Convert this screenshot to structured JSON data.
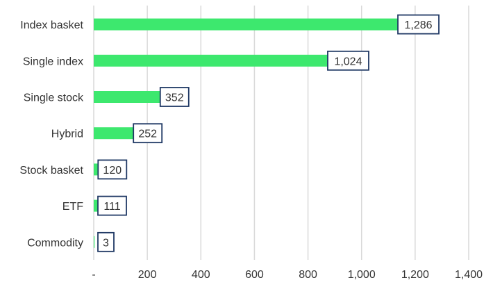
{
  "chart_data": {
    "type": "bar",
    "orientation": "horizontal",
    "categories": [
      "Index basket",
      "Single index",
      "Single stock",
      "Hybrid",
      "Stock basket",
      "ETF",
      "Commodity"
    ],
    "values": [
      1286,
      1024,
      352,
      252,
      120,
      111,
      3
    ],
    "data_labels": [
      "1,286",
      "1,024",
      "352",
      "252",
      "120",
      "111",
      "3"
    ],
    "x_ticks": [
      0,
      200,
      400,
      600,
      800,
      1000,
      1200,
      1400
    ],
    "x_tick_labels": [
      "-",
      "200",
      "400",
      "600",
      "800",
      "1,000",
      "1,200",
      "1,400"
    ],
    "xlim": [
      0,
      1400
    ],
    "grid": "vertical",
    "legend": "none",
    "colors": {
      "bar": "#3de86e",
      "grid": "#d9d9d9",
      "label_border": "#1f3864",
      "text": "#333333"
    }
  }
}
